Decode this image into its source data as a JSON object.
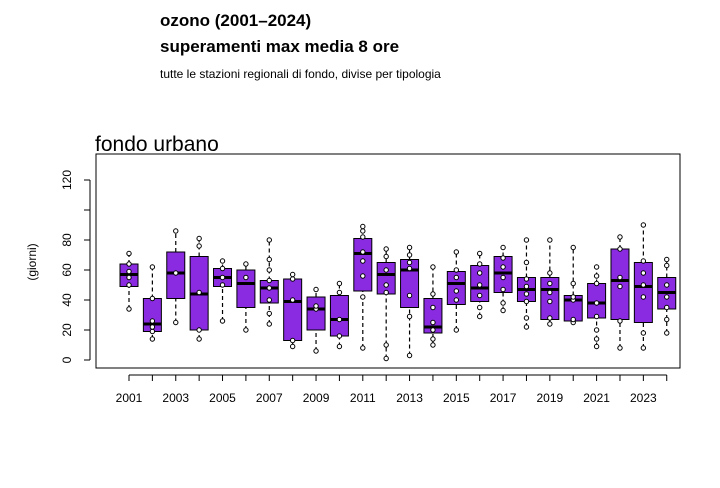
{
  "header": {
    "title_line1": "ozono (2001–2024)",
    "title_line2": "superamenti max media 8 ore",
    "subtitle": "tutte le stazioni regionali di fondo, divise per tipologia"
  },
  "chart_data": {
    "type": "box",
    "title": "fondo urbano",
    "xlabel": "",
    "ylabel": "(giorni)",
    "ylim": [
      -5,
      135
    ],
    "yticks": [
      0,
      20,
      40,
      60,
      80,
      120
    ],
    "x_tick_labels": [
      "2001",
      "2003",
      "2005",
      "2007",
      "2009",
      "2011",
      "2013",
      "2015",
      "2017",
      "2019",
      "2021",
      "2023"
    ],
    "colors": {
      "box_fill": "#8a2be2",
      "box_stroke": "#000000",
      "point_fill": "#ffffff"
    },
    "boxes": [
      {
        "year": 2001,
        "q1": 49,
        "median": 57,
        "q3": 64,
        "wmin": 34,
        "wmax": 71,
        "points": [
          34,
          50,
          55,
          59,
          64,
          71
        ]
      },
      {
        "year": 2002,
        "q1": 19,
        "median": 24,
        "q3": 41,
        "wmin": 14,
        "wmax": 62,
        "points": [
          14,
          19,
          22,
          26,
          41,
          62
        ]
      },
      {
        "year": 2003,
        "q1": 41,
        "median": 58,
        "q3": 72,
        "wmin": 25,
        "wmax": 86,
        "points": [
          25,
          58,
          86
        ]
      },
      {
        "year": 2004,
        "q1": 20,
        "median": 44,
        "q3": 69,
        "wmin": 14,
        "wmax": 81,
        "points": [
          14,
          20,
          45,
          76,
          81
        ]
      },
      {
        "year": 2005,
        "q1": 49,
        "median": 55,
        "q3": 61,
        "wmin": 26,
        "wmax": 66,
        "points": [
          26,
          50,
          55,
          61,
          66
        ]
      },
      {
        "year": 2006,
        "q1": 35,
        "median": 51,
        "q3": 60,
        "wmin": 20,
        "wmax": 64,
        "points": [
          20,
          55,
          64
        ]
      },
      {
        "year": 2007,
        "q1": 38,
        "median": 48,
        "q3": 53,
        "wmin": 24,
        "wmax": 80,
        "points": [
          24,
          31,
          40,
          48,
          53,
          60,
          67,
          80
        ]
      },
      {
        "year": 2008,
        "q1": 13,
        "median": 39,
        "q3": 54,
        "wmin": 9,
        "wmax": 57,
        "points": [
          9,
          13,
          40,
          54,
          57
        ]
      },
      {
        "year": 2009,
        "q1": 20,
        "median": 34,
        "q3": 42,
        "wmin": 6,
        "wmax": 47,
        "points": [
          6,
          34,
          36,
          47
        ]
      },
      {
        "year": 2010,
        "q1": 16,
        "median": 27,
        "q3": 43,
        "wmin": 9,
        "wmax": 51,
        "points": [
          9,
          16,
          27,
          45,
          51
        ]
      },
      {
        "year": 2011,
        "q1": 46,
        "median": 71,
        "q3": 81,
        "wmin": 8,
        "wmax": 89,
        "points": [
          8,
          42,
          56,
          66,
          72,
          82,
          86,
          89
        ]
      },
      {
        "year": 2012,
        "q1": 44,
        "median": 57,
        "q3": 65,
        "wmin": 1,
        "wmax": 74,
        "points": [
          1,
          10,
          45,
          50,
          60,
          69,
          74
        ]
      },
      {
        "year": 2013,
        "q1": 35,
        "median": 60,
        "q3": 67,
        "wmin": 3,
        "wmax": 75,
        "points": [
          3,
          29,
          43,
          61,
          65,
          70,
          75
        ]
      },
      {
        "year": 2014,
        "q1": 18,
        "median": 22,
        "q3": 41,
        "wmin": 10,
        "wmax": 62,
        "points": [
          10,
          14,
          20,
          25,
          35,
          44,
          62
        ]
      },
      {
        "year": 2015,
        "q1": 37,
        "median": 51,
        "q3": 59,
        "wmin": 20,
        "wmax": 72,
        "points": [
          20,
          40,
          46,
          55,
          60,
          72
        ]
      },
      {
        "year": 2016,
        "q1": 39,
        "median": 48,
        "q3": 63,
        "wmin": 29,
        "wmax": 71,
        "points": [
          29,
          35,
          43,
          50,
          58,
          64,
          71
        ]
      },
      {
        "year": 2017,
        "q1": 45,
        "median": 58,
        "q3": 69,
        "wmin": 33,
        "wmax": 75,
        "points": [
          33,
          38,
          47,
          55,
          62,
          68,
          75
        ]
      },
      {
        "year": 2018,
        "q1": 39,
        "median": 47,
        "q3": 55,
        "wmin": 22,
        "wmax": 80,
        "points": [
          22,
          28,
          39,
          44,
          49,
          54,
          65,
          80
        ]
      },
      {
        "year": 2019,
        "q1": 27,
        "median": 47,
        "q3": 55,
        "wmin": 24,
        "wmax": 80,
        "points": [
          24,
          28,
          39,
          45,
          51,
          58,
          80
        ]
      },
      {
        "year": 2020,
        "q1": 26,
        "median": 40,
        "q3": 43,
        "wmin": 25,
        "wmax": 75,
        "points": [
          25,
          27,
          40,
          42,
          51,
          75
        ]
      },
      {
        "year": 2021,
        "q1": 28,
        "median": 38,
        "q3": 51,
        "wmin": 9,
        "wmax": 62,
        "points": [
          9,
          14,
          20,
          29,
          38,
          51,
          56,
          62
        ]
      },
      {
        "year": 2022,
        "q1": 27,
        "median": 53,
        "q3": 74,
        "wmin": 8,
        "wmax": 82,
        "points": [
          8,
          26,
          49,
          55,
          74,
          82
        ]
      },
      {
        "year": 2023,
        "q1": 25,
        "median": 49,
        "q3": 65,
        "wmin": 8,
        "wmax": 90,
        "points": [
          8,
          18,
          42,
          50,
          58,
          66,
          90
        ]
      },
      {
        "year": 2024,
        "q1": 34,
        "median": 45,
        "q3": 55,
        "wmin": 18,
        "wmax": 67,
        "points": [
          18,
          27,
          35,
          42,
          50,
          63,
          67
        ]
      }
    ]
  }
}
